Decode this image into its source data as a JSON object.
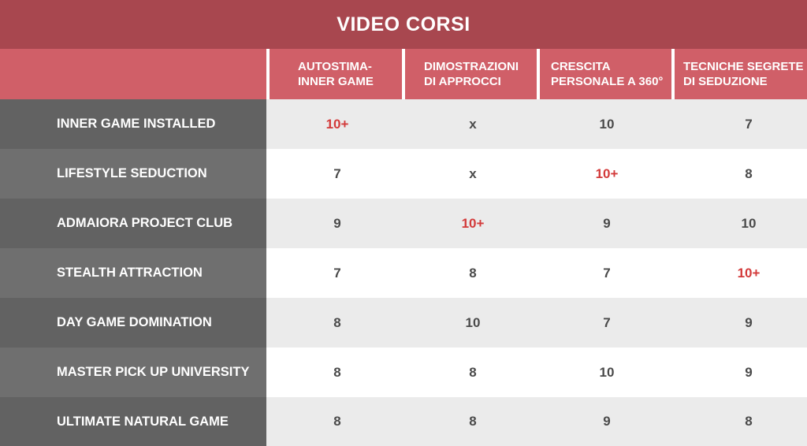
{
  "title": "VIDEO CORSI",
  "colors": {
    "title_bg": "#a8474f",
    "header_bg": "#d05f68",
    "highlight": "#d33a3a",
    "label_bg_dark": "#626262",
    "label_bg_light": "#6f6f6f"
  },
  "chart_data": {
    "type": "table",
    "title": "VIDEO CORSI",
    "columns": [
      "AUTOSTIMA-\nINNER GAME",
      "DIMOSTRAZIONI\nDI APPROCCI",
      "CRESCITA\nPERSONALE A 360°",
      "TECNICHE SEGRETE\nDI SEDUZIONE"
    ],
    "rows": [
      {
        "label": "INNER GAME INSTALLED",
        "values": [
          "10+",
          "x",
          "10",
          "7"
        ]
      },
      {
        "label": "LIFESTYLE SEDUCTION",
        "values": [
          "7",
          "x",
          "10+",
          "8"
        ]
      },
      {
        "label": "ADMAIORA PROJECT CLUB",
        "values": [
          "9",
          "10+",
          "9",
          "10"
        ]
      },
      {
        "label": "STEALTH ATTRACTION",
        "values": [
          "7",
          "8",
          "7",
          "10+"
        ]
      },
      {
        "label": "DAY GAME DOMINATION",
        "values": [
          "8",
          "10",
          "7",
          "9"
        ]
      },
      {
        "label": "MASTER PICK UP UNIVERSITY",
        "values": [
          "8",
          "8",
          "10",
          "9"
        ]
      },
      {
        "label": "ULTIMATE NATURAL GAME",
        "values": [
          "8",
          "8",
          "9",
          "8"
        ]
      }
    ]
  }
}
